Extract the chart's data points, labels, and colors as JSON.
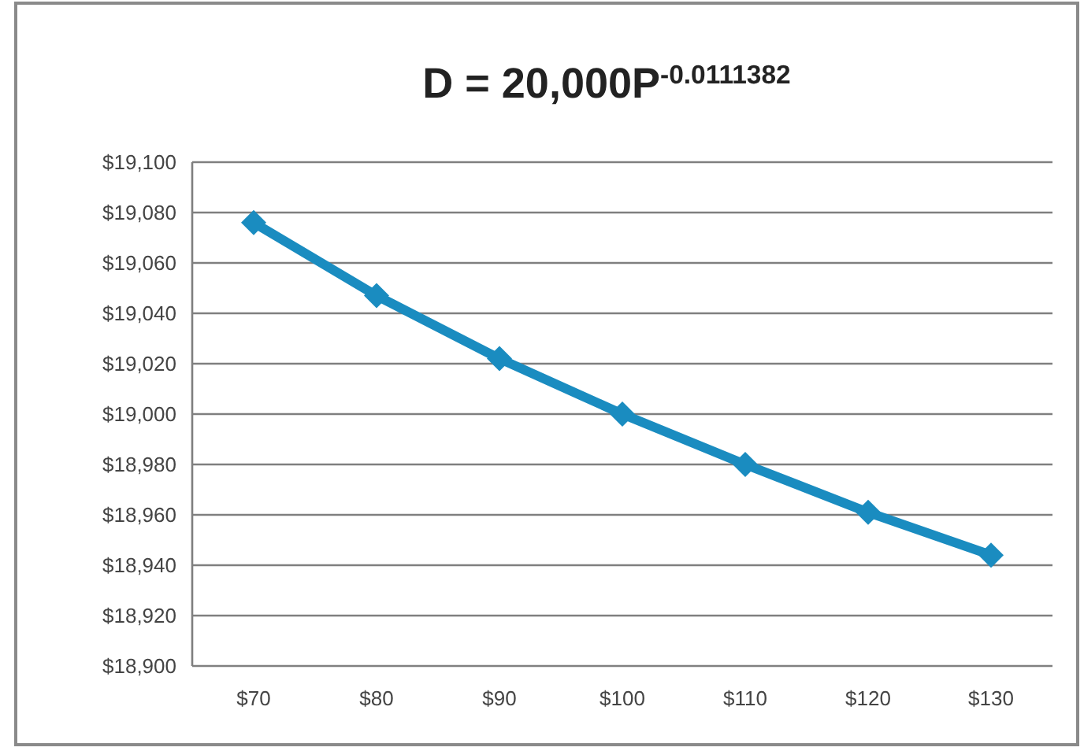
{
  "chart_data": {
    "type": "line",
    "title": "D = 20,000P$^{-0.0111382}$",
    "categories": [
      "$70",
      "$80",
      "$90",
      "$100",
      "$110",
      "$120",
      "$130"
    ],
    "series": [
      {
        "color": "#1a8cc0",
        "values": [
          19076,
          19047,
          19022,
          19000,
          18980,
          18961,
          18944
        ]
      }
    ],
    "ylim": [
      18900,
      19100
    ],
    "yticks": [
      {
        "value": 18900,
        "label": "$18,900"
      },
      {
        "value": 18920,
        "label": "$18,920"
      },
      {
        "value": 18940,
        "label": "$18,940"
      },
      {
        "value": 18960,
        "label": "$18,960"
      },
      {
        "value": 18980,
        "label": "$18,980"
      },
      {
        "value": 19000,
        "label": "$19,000"
      },
      {
        "value": 19020,
        "label": "$19,020"
      },
      {
        "value": 19040,
        "label": "$19,040"
      },
      {
        "value": 19060,
        "label": "$19,060"
      },
      {
        "value": 19080,
        "label": "$19,080"
      },
      {
        "value": 19100,
        "label": "$19,100"
      }
    ],
    "grid": "y",
    "marker": "diamond",
    "line_style": "solid"
  }
}
